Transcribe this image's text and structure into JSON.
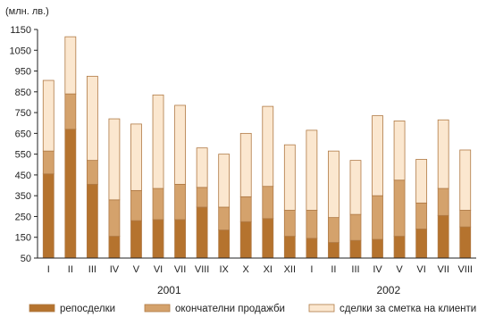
{
  "chart_data": {
    "type": "bar",
    "stacked": true,
    "unit_label": "(млн. лв.)",
    "ylim": [
      50,
      1150
    ],
    "yticks": [
      50,
      150,
      250,
      350,
      450,
      550,
      650,
      750,
      850,
      950,
      1050,
      1150
    ],
    "categories": [
      "I",
      "II",
      "III",
      "IV",
      "V",
      "VI",
      "VII",
      "VIII",
      "IX",
      "X",
      "XI",
      "XII",
      "I",
      "II",
      "III",
      "IV",
      "V",
      "VI",
      "VII",
      "VIII"
    ],
    "groups": [
      {
        "label": "2001",
        "start": 0,
        "end": 11
      },
      {
        "label": "2002",
        "start": 12,
        "end": 19
      }
    ],
    "series": [
      {
        "name": "репосделки",
        "color": "#b5732e",
        "values": [
          405,
          620,
          355,
          105,
          180,
          185,
          185,
          245,
          135,
          175,
          190,
          105,
          95,
          75,
          85,
          90,
          105,
          140,
          205,
          150
        ]
      },
      {
        "name": "окончателни продажби",
        "color": "#d4a26c",
        "values": [
          110,
          170,
          115,
          175,
          145,
          150,
          170,
          95,
          110,
          120,
          155,
          125,
          135,
          120,
          125,
          210,
          270,
          125,
          130,
          80
        ]
      },
      {
        "name": "сделки за сметка на клиенти",
        "color": "#fbe7cf",
        "values": [
          340,
          275,
          405,
          390,
          320,
          450,
          380,
          190,
          255,
          305,
          385,
          315,
          385,
          320,
          260,
          385,
          285,
          210,
          330,
          290
        ]
      }
    ],
    "grid": false
  }
}
